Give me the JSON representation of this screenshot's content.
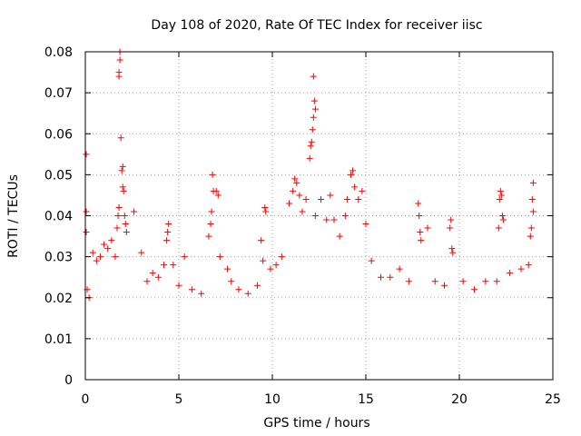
{
  "chart_data": {
    "type": "scatter",
    "title": "Day 108 of 2020, Rate Of TEC Index for receiver iisc",
    "xlabel": "GPS time / hours",
    "ylabel": "ROTI / TECUs",
    "xlim": [
      0,
      25
    ],
    "ylim": [
      0,
      0.08
    ],
    "xticks": [
      0,
      5,
      10,
      15,
      20,
      25
    ],
    "xtick_labels": [
      "0",
      "5",
      "10",
      "15",
      "20",
      "25"
    ],
    "yticks": [
      0,
      0.01,
      0.02,
      0.03,
      0.04,
      0.05,
      0.06,
      0.07,
      0.08
    ],
    "ytick_labels": [
      "0",
      "0.01",
      "0.02",
      "0.03",
      "0.04",
      "0.05",
      "0.06",
      "0.07",
      "0.08"
    ],
    "grid": true,
    "marker": "+",
    "marker_color": "#ff0000",
    "series": [
      {
        "points": [
          [
            0.05,
            0.055
          ],
          [
            0.05,
            0.041
          ],
          [
            0.05,
            0.036
          ],
          [
            0.1,
            0.022
          ],
          [
            0.2,
            0.02
          ],
          [
            0.4,
            0.031
          ],
          [
            0.6,
            0.029
          ],
          [
            0.8,
            0.03
          ],
          [
            1.0,
            0.033
          ],
          [
            1.2,
            0.032
          ],
          [
            1.4,
            0.034
          ],
          [
            1.6,
            0.03
          ],
          [
            1.7,
            0.037
          ],
          [
            1.75,
            0.04
          ],
          [
            1.8,
            0.042
          ],
          [
            1.8,
            0.074
          ],
          [
            1.8,
            0.075
          ],
          [
            1.85,
            0.078
          ],
          [
            1.85,
            0.08
          ],
          [
            1.9,
            0.059
          ],
          [
            1.95,
            0.051
          ],
          [
            2.0,
            0.052
          ],
          [
            2.0,
            0.047
          ],
          [
            2.05,
            0.046
          ],
          [
            2.1,
            0.04
          ],
          [
            2.15,
            0.038
          ],
          [
            2.2,
            0.036
          ],
          [
            2.6,
            0.041
          ],
          [
            3.0,
            0.031
          ],
          [
            3.3,
            0.024
          ],
          [
            3.6,
            0.026
          ],
          [
            3.9,
            0.025
          ],
          [
            4.2,
            0.028
          ],
          [
            4.35,
            0.034
          ],
          [
            4.4,
            0.036
          ],
          [
            4.45,
            0.038
          ],
          [
            4.7,
            0.028
          ],
          [
            5.0,
            0.023
          ],
          [
            5.3,
            0.03
          ],
          [
            5.7,
            0.022
          ],
          [
            6.2,
            0.021
          ],
          [
            6.6,
            0.035
          ],
          [
            6.7,
            0.038
          ],
          [
            6.75,
            0.041
          ],
          [
            6.8,
            0.05
          ],
          [
            6.85,
            0.046
          ],
          [
            7.0,
            0.046
          ],
          [
            7.1,
            0.045
          ],
          [
            7.2,
            0.03
          ],
          [
            7.6,
            0.027
          ],
          [
            7.8,
            0.024
          ],
          [
            8.2,
            0.022
          ],
          [
            8.7,
            0.021
          ],
          [
            9.2,
            0.023
          ],
          [
            9.4,
            0.034
          ],
          [
            9.5,
            0.029
          ],
          [
            9.6,
            0.042
          ],
          [
            9.65,
            0.041
          ],
          [
            9.9,
            0.027
          ],
          [
            10.2,
            0.028
          ],
          [
            10.5,
            0.03
          ],
          [
            10.9,
            0.043
          ],
          [
            11.1,
            0.046
          ],
          [
            11.2,
            0.049
          ],
          [
            11.3,
            0.048
          ],
          [
            11.45,
            0.045
          ],
          [
            11.6,
            0.041
          ],
          [
            11.8,
            0.044
          ],
          [
            12.0,
            0.054
          ],
          [
            12.05,
            0.057
          ],
          [
            12.1,
            0.058
          ],
          [
            12.15,
            0.061
          ],
          [
            12.2,
            0.064
          ],
          [
            12.25,
            0.068
          ],
          [
            12.3,
            0.066
          ],
          [
            12.2,
            0.074
          ],
          [
            12.3,
            0.04
          ],
          [
            12.6,
            0.044
          ],
          [
            12.9,
            0.039
          ],
          [
            13.1,
            0.045
          ],
          [
            13.3,
            0.039
          ],
          [
            13.6,
            0.035
          ],
          [
            13.9,
            0.04
          ],
          [
            14.0,
            0.044
          ],
          [
            14.2,
            0.05
          ],
          [
            14.3,
            0.051
          ],
          [
            14.4,
            0.047
          ],
          [
            14.6,
            0.044
          ],
          [
            14.8,
            0.046
          ],
          [
            15.0,
            0.038
          ],
          [
            15.3,
            0.029
          ],
          [
            15.8,
            0.025
          ],
          [
            16.3,
            0.025
          ],
          [
            16.8,
            0.027
          ],
          [
            17.3,
            0.024
          ],
          [
            17.8,
            0.043
          ],
          [
            17.85,
            0.04
          ],
          [
            17.9,
            0.036
          ],
          [
            17.95,
            0.034
          ],
          [
            18.3,
            0.037
          ],
          [
            18.7,
            0.024
          ],
          [
            19.2,
            0.023
          ],
          [
            19.5,
            0.037
          ],
          [
            19.55,
            0.039
          ],
          [
            19.6,
            0.032
          ],
          [
            19.65,
            0.031
          ],
          [
            20.2,
            0.024
          ],
          [
            20.8,
            0.022
          ],
          [
            21.4,
            0.024
          ],
          [
            22.0,
            0.024
          ],
          [
            22.1,
            0.037
          ],
          [
            22.15,
            0.044
          ],
          [
            22.2,
            0.046
          ],
          [
            22.25,
            0.045
          ],
          [
            22.3,
            0.04
          ],
          [
            22.35,
            0.039
          ],
          [
            22.7,
            0.026
          ],
          [
            23.3,
            0.027
          ],
          [
            23.7,
            0.028
          ],
          [
            23.8,
            0.035
          ],
          [
            23.85,
            0.037
          ],
          [
            23.9,
            0.044
          ],
          [
            23.95,
            0.048
          ],
          [
            23.95,
            0.041
          ]
        ]
      }
    ]
  }
}
